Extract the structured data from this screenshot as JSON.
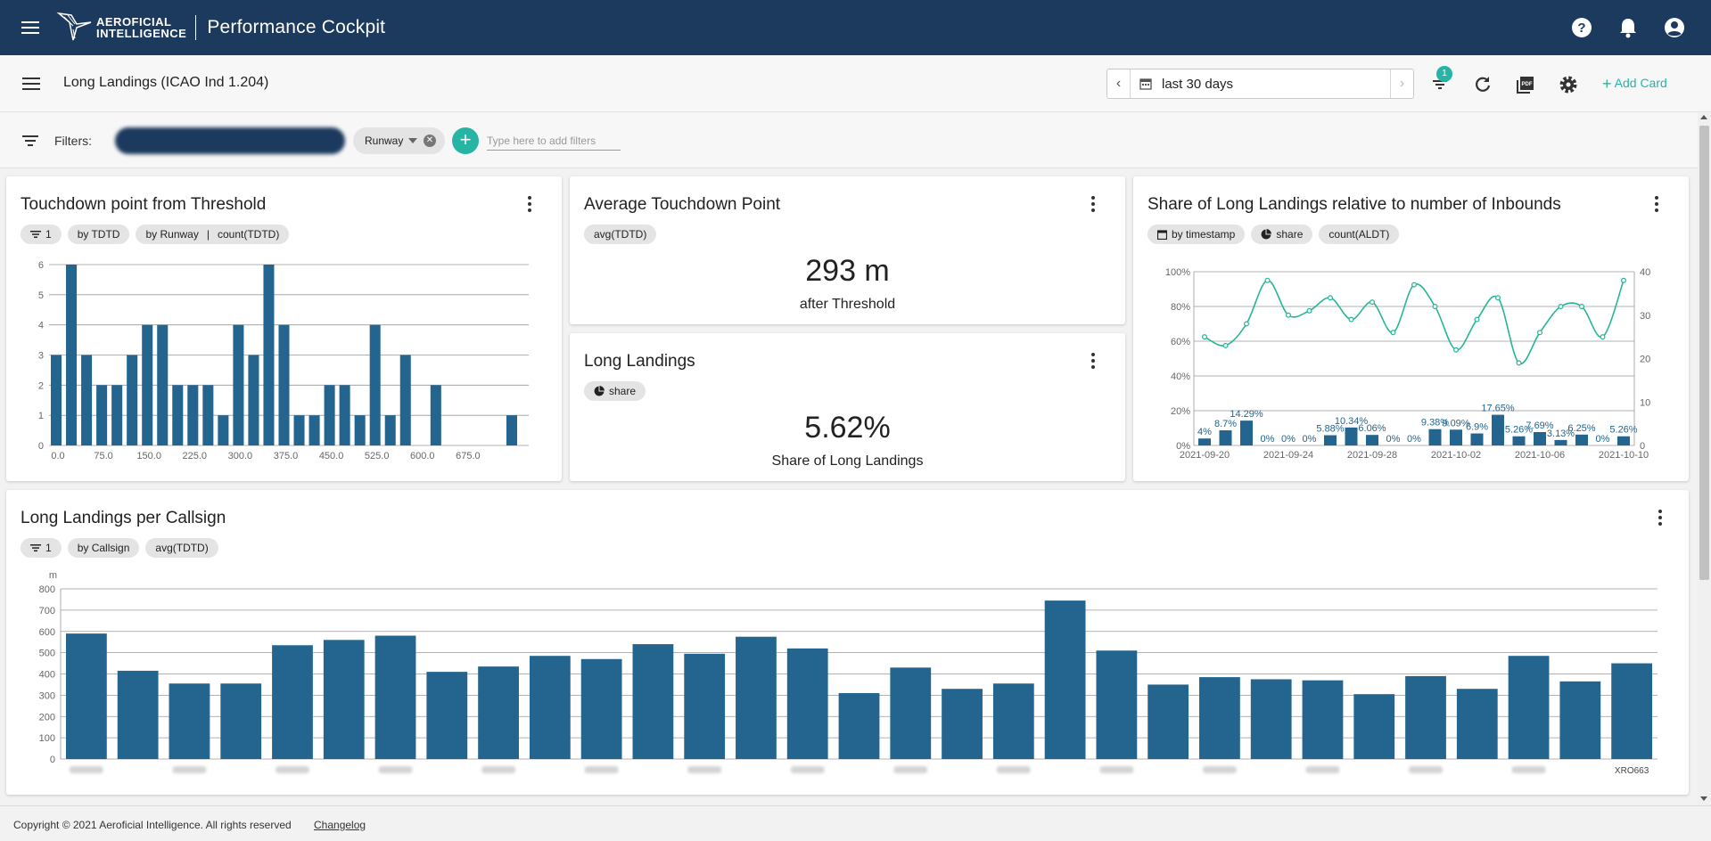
{
  "header": {
    "logo_line1": "AEROFICIAL",
    "logo_line2": "INTELLIGENCE",
    "app_title": "Performance Cockpit",
    "icons": [
      "menu-icon",
      "help-icon",
      "bell-icon",
      "account-icon"
    ]
  },
  "subbar": {
    "page_title": "Long Landings (ICAO Ind 1.204)",
    "date_range": "last 30 days",
    "filter_badge": "1",
    "add_card_label": "Add Card",
    "icons": [
      "chevron-left-icon",
      "calendar-icon",
      "chevron-right-icon",
      "filter-list-icon",
      "refresh-icon",
      "pdf-icon",
      "gear-icon",
      "plus-icon"
    ]
  },
  "filters": {
    "label": "Filters:",
    "chip_runway": "Runway",
    "input_placeholder": "Type here to add filters"
  },
  "cards": {
    "touchdown": {
      "title": "Touchdown point from Threshold",
      "chip_filter": "1",
      "chip_by": "by TDTD",
      "chip_group_a": "by Runway",
      "chip_group_sep": "|",
      "chip_group_b": "count(TDTD)"
    },
    "avg": {
      "title": "Average Touchdown Point",
      "chip": "avg(TDTD)",
      "value": "293 m",
      "label": "after Threshold"
    },
    "long": {
      "title": "Long Landings",
      "chip": "share",
      "value": "5.62%",
      "label": "Share of Long Landings"
    },
    "share": {
      "title": "Share of Long Landings relative to number of Inbounds",
      "chip_a": "by timestamp",
      "chip_b": "share",
      "chip_c": "count(ALDT)"
    },
    "callsign": {
      "title": "Long Landings per Callsign",
      "chip_filter": "1",
      "chip_a": "by Callsign",
      "chip_b": "avg(TDTD)"
    }
  },
  "chart_data": [
    {
      "id": "touchdown-histogram",
      "type": "bar",
      "x_start": 0,
      "bin_width": 25,
      "values": [
        3,
        6,
        3,
        2,
        2,
        3,
        4,
        4,
        2,
        2,
        2,
        1,
        4,
        3,
        6,
        4,
        1,
        1,
        2,
        2,
        1,
        4,
        1,
        3,
        0,
        2,
        0,
        0,
        0,
        0,
        1
      ],
      "xticks": [
        "0.0",
        "75.0",
        "150.0",
        "225.0",
        "300.0",
        "375.0",
        "450.0",
        "525.0",
        "600.0",
        "675.0"
      ],
      "yticks": [
        "0",
        "1",
        "2",
        "3",
        "4",
        "5",
        "6"
      ],
      "ylim": [
        0,
        6
      ],
      "color": "#23658f"
    },
    {
      "id": "share-combo",
      "type": "line",
      "dates": [
        "2021-09-20",
        "2021-09-21",
        "2021-09-22",
        "2021-09-23",
        "2021-09-24",
        "2021-09-25",
        "2021-09-26",
        "2021-09-27",
        "2021-09-28",
        "2021-09-29",
        "2021-09-30",
        "2021-10-01",
        "2021-10-02",
        "2021-10-03",
        "2021-10-04",
        "2021-10-05",
        "2021-10-06",
        "2021-10-07",
        "2021-10-08",
        "2021-10-09",
        "2021-10-10"
      ],
      "xticks": [
        "2021-09-20",
        "2021-09-24",
        "2021-09-28",
        "2021-10-02",
        "2021-10-06",
        "2021-10-10"
      ],
      "series": [
        {
          "kind": "bar",
          "axis": "left",
          "values": [
            4,
            8.7,
            14.29,
            0,
            0,
            0,
            5.88,
            10.34,
            6.06,
            0,
            0,
            9.38,
            9.09,
            6.9,
            17.65,
            5.26,
            7.69,
            3.13,
            6.25,
            0,
            5.26
          ],
          "labels": [
            "4%",
            "8.7%",
            "14.29%",
            "0%",
            "0%",
            "0%",
            "5.88%",
            "10.34%",
            "6.06%",
            "0%",
            "0%",
            "9.38%",
            "9.09%",
            "6.9%",
            "17.65%",
            "5.26%",
            "7.69%",
            "3.13%",
            "6.25%",
            "0%",
            "5.26%"
          ],
          "color": "#23658f"
        },
        {
          "kind": "line",
          "axis": "right",
          "values": [
            25,
            23,
            28,
            38,
            30,
            31,
            34,
            29,
            33,
            26,
            37,
            32,
            22,
            29,
            34,
            19,
            26,
            32,
            32,
            25,
            38
          ],
          "color": "#26b597"
        }
      ],
      "yticks_left": [
        "0%",
        "20%",
        "40%",
        "60%",
        "80%",
        "100%"
      ],
      "yticks_right": [
        "0",
        "10",
        "20",
        "30",
        "40"
      ],
      "ylim_left": [
        0,
        100
      ],
      "ylim_right": [
        0,
        40
      ]
    },
    {
      "id": "callsign-bars",
      "type": "bar",
      "ylabel": "m",
      "values": [
        590,
        415,
        355,
        355,
        535,
        560,
        580,
        410,
        435,
        485,
        470,
        540,
        495,
        575,
        520,
        310,
        430,
        330,
        355,
        745,
        510,
        350,
        385,
        375,
        370,
        305,
        390,
        330,
        485,
        365,
        450
      ],
      "xtick_labels_visible": [
        "XRO663"
      ],
      "yticks": [
        "0",
        "100",
        "200",
        "300",
        "400",
        "500",
        "600",
        "700",
        "800"
      ],
      "ylim": [
        0,
        800
      ],
      "color": "#23658f"
    }
  ],
  "footer": {
    "copyright": "Copyright © 2021 Aeroficial Intelligence. All rights reserved",
    "changelog": "Changelog"
  }
}
